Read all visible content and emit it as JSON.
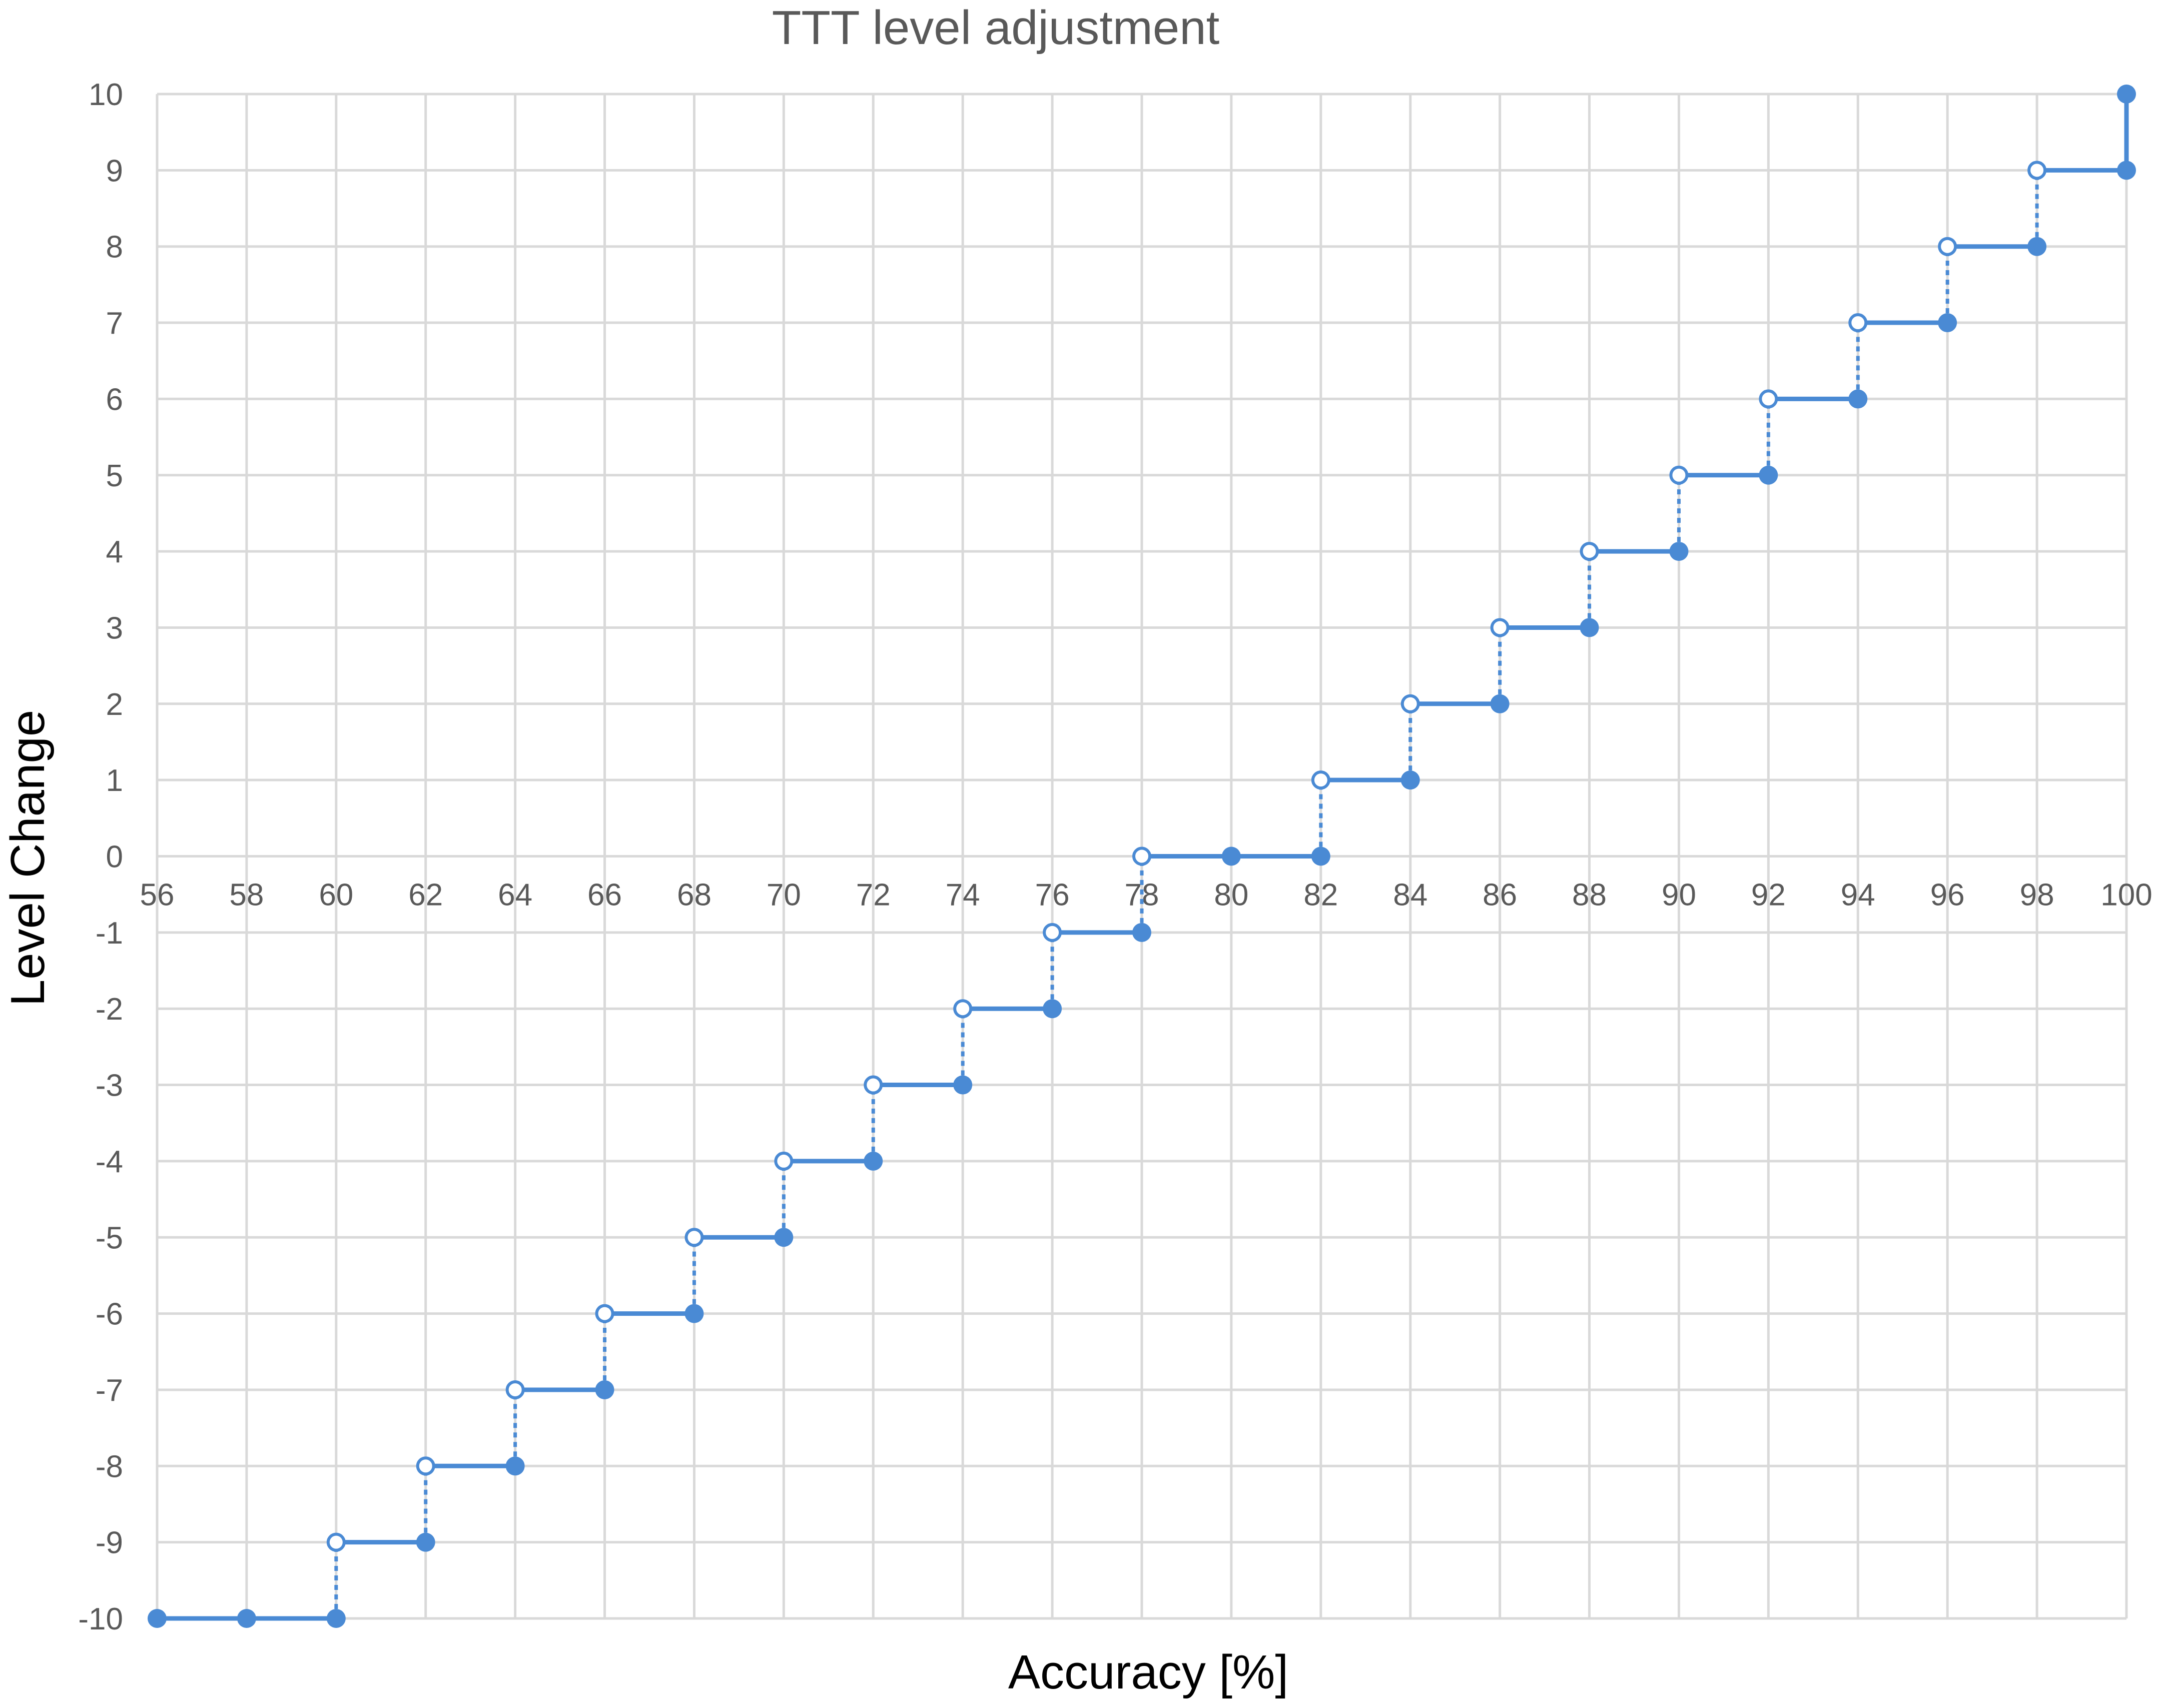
{
  "colors": {
    "series": "#4a8ad4"
  },
  "chart_data": {
    "type": "line",
    "title": "TTT level adjustment",
    "xlabel": "Accuracy [%]",
    "ylabel": "Level Change",
    "xlim": [
      56,
      100
    ],
    "ylim": [
      -10,
      10
    ],
    "grid": true,
    "x_ticks": [
      56,
      58,
      60,
      62,
      64,
      66,
      68,
      70,
      72,
      74,
      76,
      78,
      80,
      82,
      84,
      86,
      88,
      90,
      92,
      94,
      96,
      98,
      100
    ],
    "y_ticks": [
      10,
      9,
      8,
      7,
      6,
      5,
      4,
      3,
      2,
      1,
      0,
      -1,
      -2,
      -3,
      -4,
      -5,
      -6,
      -7,
      -8,
      -9,
      -10
    ],
    "steps": [
      {
        "x_start": 56,
        "x_end": 60,
        "y": -10
      },
      {
        "x_start": 60,
        "x_end": 62,
        "y": -9
      },
      {
        "x_start": 62,
        "x_end": 64,
        "y": -8
      },
      {
        "x_start": 64,
        "x_end": 66,
        "y": -7
      },
      {
        "x_start": 66,
        "x_end": 68,
        "y": -6
      },
      {
        "x_start": 68,
        "x_end": 70,
        "y": -5
      },
      {
        "x_start": 70,
        "x_end": 72,
        "y": -4
      },
      {
        "x_start": 72,
        "x_end": 74,
        "y": -3
      },
      {
        "x_start": 74,
        "x_end": 76,
        "y": -2
      },
      {
        "x_start": 76,
        "x_end": 78,
        "y": -1
      },
      {
        "x_start": 78,
        "x_end": 82,
        "y": 0
      },
      {
        "x_start": 82,
        "x_end": 84,
        "y": 1
      },
      {
        "x_start": 84,
        "x_end": 86,
        "y": 2
      },
      {
        "x_start": 86,
        "x_end": 88,
        "y": 3
      },
      {
        "x_start": 88,
        "x_end": 90,
        "y": 4
      },
      {
        "x_start": 90,
        "x_end": 92,
        "y": 5
      },
      {
        "x_start": 92,
        "x_end": 94,
        "y": 6
      },
      {
        "x_start": 94,
        "x_end": 96,
        "y": 7
      },
      {
        "x_start": 96,
        "x_end": 98,
        "y": 8
      },
      {
        "x_start": 98,
        "x_end": 100,
        "y": 9
      }
    ],
    "filled_points": [
      [
        56,
        -10
      ],
      [
        58,
        -10
      ],
      [
        60,
        -10
      ],
      [
        62,
        -9
      ],
      [
        64,
        -8
      ],
      [
        66,
        -7
      ],
      [
        68,
        -6
      ],
      [
        70,
        -5
      ],
      [
        72,
        -4
      ],
      [
        74,
        -3
      ],
      [
        76,
        -2
      ],
      [
        78,
        -1
      ],
      [
        80,
        0
      ],
      [
        82,
        0
      ],
      [
        84,
        1
      ],
      [
        86,
        2
      ],
      [
        88,
        3
      ],
      [
        90,
        4
      ],
      [
        92,
        5
      ],
      [
        94,
        6
      ],
      [
        96,
        7
      ],
      [
        98,
        8
      ],
      [
        100,
        9
      ],
      [
        100,
        10
      ]
    ],
    "open_points": [
      [
        60,
        -9
      ],
      [
        62,
        -8
      ],
      [
        64,
        -7
      ],
      [
        66,
        -6
      ],
      [
        68,
        -5
      ],
      [
        70,
        -4
      ],
      [
        72,
        -3
      ],
      [
        74,
        -2
      ],
      [
        76,
        -1
      ],
      [
        78,
        0
      ],
      [
        82,
        1
      ],
      [
        84,
        2
      ],
      [
        86,
        3
      ],
      [
        88,
        4
      ],
      [
        90,
        5
      ],
      [
        92,
        6
      ],
      [
        94,
        7
      ],
      [
        96,
        8
      ],
      [
        98,
        9
      ]
    ],
    "dotted_jumps": [
      [
        60,
        -10,
        -9
      ],
      [
        62,
        -9,
        -8
      ],
      [
        64,
        -8,
        -7
      ],
      [
        66,
        -7,
        -6
      ],
      [
        68,
        -6,
        -5
      ],
      [
        70,
        -5,
        -4
      ],
      [
        72,
        -4,
        -3
      ],
      [
        74,
        -3,
        -2
      ],
      [
        76,
        -2,
        -1
      ],
      [
        78,
        -1,
        0
      ],
      [
        82,
        0,
        1
      ],
      [
        84,
        1,
        2
      ],
      [
        86,
        2,
        3
      ],
      [
        88,
        3,
        4
      ],
      [
        90,
        4,
        5
      ],
      [
        92,
        5,
        6
      ],
      [
        94,
        6,
        7
      ],
      [
        96,
        7,
        8
      ],
      [
        98,
        8,
        9
      ]
    ],
    "solid_jumps": [
      [
        100,
        9,
        10
      ]
    ]
  }
}
